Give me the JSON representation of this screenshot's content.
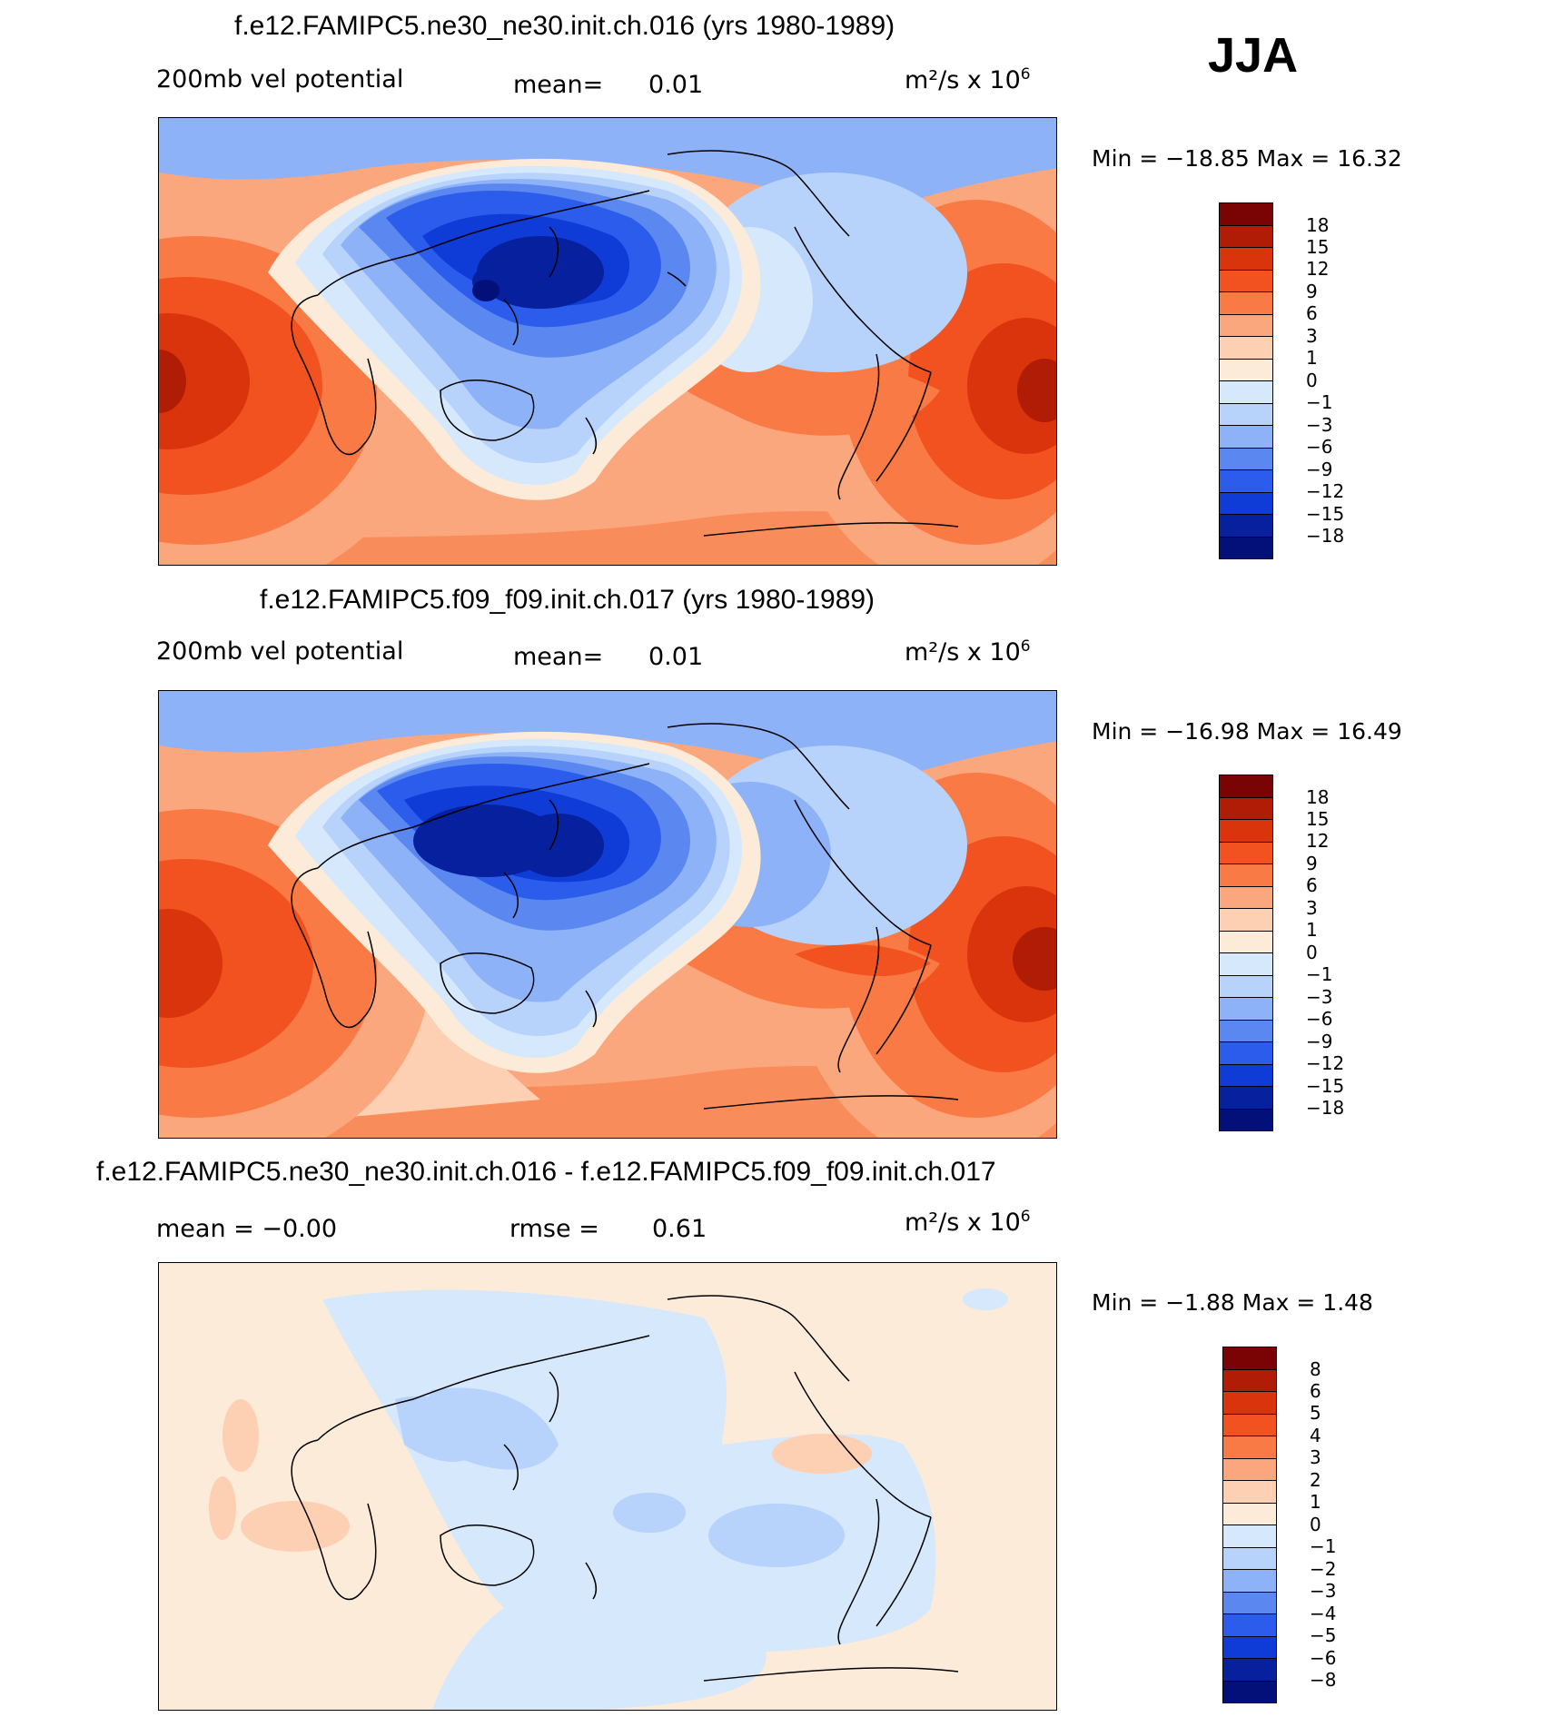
{
  "season": "JJA",
  "panels": [
    {
      "title": "f.e12.FAMIPC5.ne30_ne30.init.ch.016 (yrs 1980-1989)",
      "left_label": "200mb vel potential",
      "mid_label": "mean=",
      "mid_value": "0.01",
      "units": "m²/s x 10",
      "units_exp": "6",
      "minmax": "Min = −18.85 Max =   16.32",
      "colorbar_labels": [
        "18",
        "15",
        "12",
        "9",
        "6",
        "3",
        "1",
        "0",
        "−1",
        "−3",
        "−6",
        "−9",
        "−12",
        "−15",
        "−18"
      ]
    },
    {
      "title": "f.e12.FAMIPC5.f09_f09.init.ch.017 (yrs 1980-1989)",
      "left_label": "200mb vel potential",
      "mid_label": "mean=",
      "mid_value": "0.01",
      "units": "m²/s x 10",
      "units_exp": "6",
      "minmax": "Min = −16.98 Max =   16.49",
      "colorbar_labels": [
        "18",
        "15",
        "12",
        "9",
        "6",
        "3",
        "1",
        "0",
        "−1",
        "−3",
        "−6",
        "−9",
        "−12",
        "−15",
        "−18"
      ]
    },
    {
      "title": "f.e12.FAMIPC5.ne30_ne30.init.ch.016 - f.e12.FAMIPC5.f09_f09.init.ch.017",
      "left_label": "mean =   −0.00",
      "mid_label": "rmse =",
      "mid_value": "0.61",
      "units": "m²/s x 10",
      "units_exp": "6",
      "minmax": "Min =   −1.88 Max =    1.48",
      "colorbar_labels": [
        "8",
        "6",
        "5",
        "4",
        "3",
        "2",
        "1",
        "0",
        "−1",
        "−2",
        "−3",
        "−4",
        "−5",
        "−6",
        "−8"
      ]
    }
  ],
  "colors": {
    "bar": [
      "#7a0404",
      "#b01c06",
      "#d9340b",
      "#f2521f",
      "#f97a45",
      "#fba77e",
      "#fdd0b4",
      "#fdebd9",
      "#d6e8fb",
      "#b7d2fb",
      "#8db2f7",
      "#5a88f0",
      "#2c5ceb",
      "#0f3bd6",
      "#06209e",
      "#03107a"
    ]
  }
}
